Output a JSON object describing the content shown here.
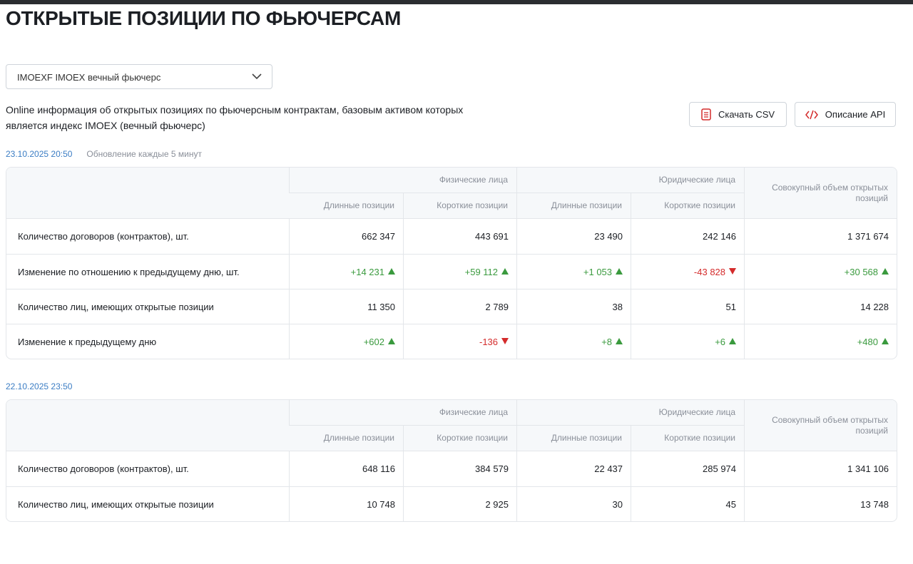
{
  "header": {
    "title": "ОТКРЫТЫЕ ПОЗИЦИИ ПО ФЬЮЧЕРСАМ"
  },
  "select": {
    "value": "IMOEXF IMOEX вечный фьючерс"
  },
  "description": "Online информация об открытых позициях по фьючерсным контрактам, базовым активом которых является индекс IMOEX (вечный фьючерс)",
  "buttons": [
    "Скачать CSV",
    "Описание API"
  ],
  "tables": [
    {
      "date": "23.10.2025 20:50",
      "note": "Обновление каждые 5 минут",
      "groups": [
        "Физические лица",
        "Юридические лица"
      ],
      "subheaders": [
        "Длинные позиции",
        "Короткие позиции",
        "Длинные позиции",
        "Короткие позиции"
      ],
      "total_header": "Совокупный объем открытых позиций",
      "rows": [
        {
          "label": "Количество договоров (контрактов), шт.",
          "cells": [
            "662 347",
            "443 691",
            "23 490",
            "242 146",
            "1 371 674"
          ]
        },
        {
          "label": "Изменение по отношению к предыдущему дню, шт.",
          "cells": [
            "+14 231",
            "+59 112",
            "+1 053",
            "-43 828",
            "+30 568"
          ]
        },
        {
          "label": "Количество лиц, имеющих открытые позиции",
          "cells": [
            "11 350",
            "2 789",
            "38",
            "51",
            "14 228"
          ]
        },
        {
          "label": "Изменение к предыдущему дню",
          "cells": [
            "+602",
            "-136",
            "+8",
            "+6",
            "+480"
          ]
        }
      ]
    },
    {
      "date": "22.10.2025 23:50",
      "groups": [
        "Физические лица",
        "Юридические лица"
      ],
      "subheaders": [
        "Длинные позиции",
        "Короткие позиции",
        "Длинные позиции",
        "Короткие позиции"
      ],
      "total_header": "Совокупный объем открытых позиций",
      "rows": [
        {
          "label": "Количество договоров (контрактов), шт.",
          "cells": [
            "648 116",
            "384 579",
            "22 437",
            "285 974",
            "1 341 106"
          ]
        },
        {
          "label": "Количество лиц, имеющих открытые позиции",
          "cells": [
            "10 748",
            "2 925",
            "30",
            "45",
            "13 748"
          ]
        }
      ]
    }
  ]
}
